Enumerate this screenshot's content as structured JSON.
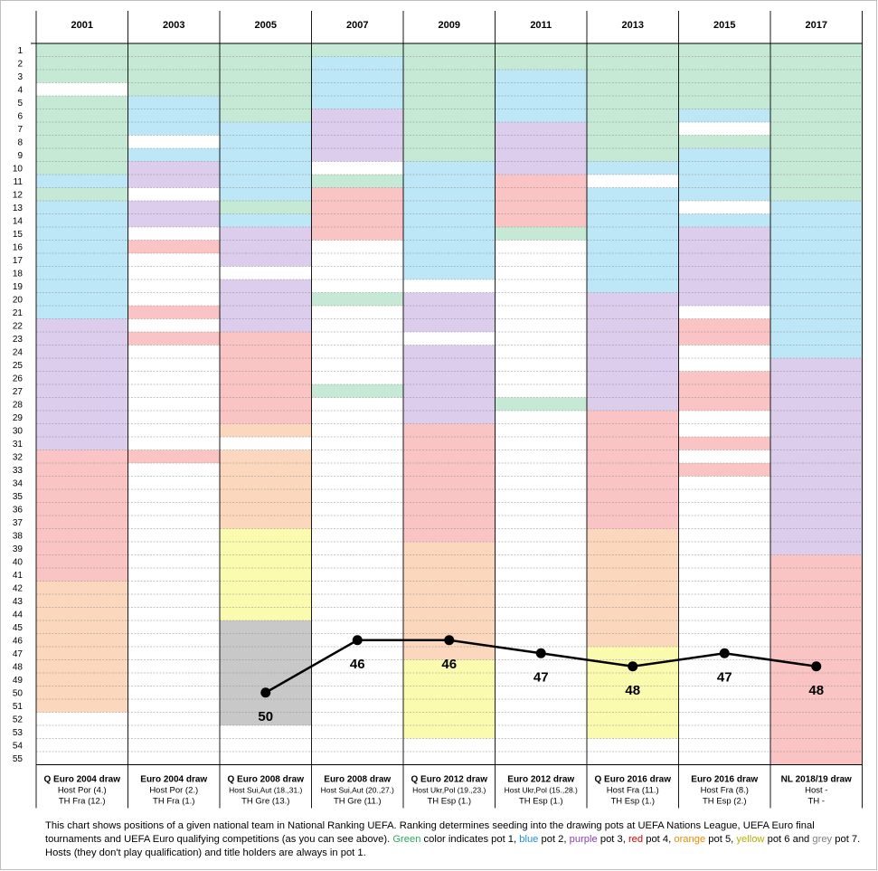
{
  "chart_data": {
    "type": "line",
    "title": "",
    "xlabel": "",
    "ylabel": "",
    "years": [
      "2001",
      "2003",
      "2005",
      "2007",
      "2009",
      "2011",
      "2013",
      "2015",
      "2017"
    ],
    "rows": 55,
    "ylim": [
      1,
      55
    ],
    "pot_colors": {
      "pot1": "#c6e9d5",
      "pot2": "#bde6f7",
      "pot3": "#dccdec",
      "pot4": "#fbc4c4",
      "pot5": "#fbd7bd",
      "pot6": "#fbfbb0",
      "pot7": "#c8c8c8",
      "none": "#ffffff"
    },
    "pot_bands": [
      [
        [
          1,
          3,
          "pot1"
        ],
        [
          4,
          4,
          "none"
        ],
        [
          5,
          10,
          "pot1"
        ],
        [
          11,
          11,
          "pot2"
        ],
        [
          12,
          12,
          "pot1"
        ],
        [
          13,
          21,
          "pot2"
        ],
        [
          22,
          31,
          "pot3"
        ],
        [
          32,
          41,
          "pot4"
        ],
        [
          42,
          51,
          "pot5"
        ]
      ],
      [
        [
          1,
          4,
          "pot1"
        ],
        [
          5,
          7,
          "pot2"
        ],
        [
          8,
          8,
          "none"
        ],
        [
          9,
          9,
          "pot2"
        ],
        [
          10,
          11,
          "pot3"
        ],
        [
          12,
          12,
          "none"
        ],
        [
          13,
          14,
          "pot3"
        ],
        [
          15,
          15,
          "none"
        ],
        [
          16,
          16,
          "pot4"
        ],
        [
          21,
          21,
          "pot4"
        ],
        [
          23,
          23,
          "pot4"
        ],
        [
          32,
          32,
          "pot4"
        ]
      ],
      [
        [
          1,
          6,
          "pot1"
        ],
        [
          7,
          12,
          "pot2"
        ],
        [
          13,
          13,
          "pot1"
        ],
        [
          14,
          14,
          "pot2"
        ],
        [
          15,
          17,
          "pot3"
        ],
        [
          19,
          22,
          "pot3"
        ],
        [
          23,
          29,
          "pot4"
        ],
        [
          30,
          30,
          "pot5"
        ],
        [
          32,
          37,
          "pot5"
        ],
        [
          38,
          44,
          "pot6"
        ],
        [
          45,
          52,
          "pot7"
        ]
      ],
      [
        [
          1,
          1,
          "pot1"
        ],
        [
          2,
          5,
          "pot2"
        ],
        [
          6,
          9,
          "pot3"
        ],
        [
          11,
          11,
          "pot1"
        ],
        [
          12,
          15,
          "pot4"
        ],
        [
          20,
          20,
          "pot1"
        ],
        [
          27,
          27,
          "pot1"
        ]
      ],
      [
        [
          1,
          9,
          "pot1"
        ],
        [
          10,
          18,
          "pot2"
        ],
        [
          20,
          22,
          "pot3"
        ],
        [
          24,
          29,
          "pot3"
        ],
        [
          30,
          38,
          "pot4"
        ],
        [
          39,
          47,
          "pot5"
        ],
        [
          48,
          53,
          "pot6"
        ]
      ],
      [
        [
          1,
          2,
          "pot1"
        ],
        [
          3,
          6,
          "pot2"
        ],
        [
          7,
          10,
          "pot3"
        ],
        [
          11,
          14,
          "pot4"
        ],
        [
          15,
          15,
          "pot1"
        ],
        [
          28,
          28,
          "pot1"
        ]
      ],
      [
        [
          1,
          9,
          "pot1"
        ],
        [
          10,
          10,
          "pot2"
        ],
        [
          12,
          19,
          "pot2"
        ],
        [
          20,
          28,
          "pot3"
        ],
        [
          29,
          37,
          "pot4"
        ],
        [
          38,
          46,
          "pot5"
        ],
        [
          47,
          53,
          "pot6"
        ]
      ],
      [
        [
          1,
          5,
          "pot1"
        ],
        [
          6,
          6,
          "pot2"
        ],
        [
          8,
          8,
          "pot1"
        ],
        [
          9,
          12,
          "pot2"
        ],
        [
          14,
          14,
          "pot2"
        ],
        [
          15,
          20,
          "pot3"
        ],
        [
          22,
          23,
          "pot4"
        ],
        [
          26,
          28,
          "pot4"
        ],
        [
          31,
          31,
          "pot4"
        ],
        [
          33,
          33,
          "pot4"
        ]
      ],
      [
        [
          1,
          12,
          "pot1"
        ],
        [
          13,
          24,
          "pot2"
        ],
        [
          25,
          39,
          "pot3"
        ],
        [
          40,
          55,
          "pot4"
        ]
      ]
    ],
    "series": [
      {
        "x": [
          "2005",
          "2007",
          "2009",
          "2011",
          "2013",
          "2015",
          "2017"
        ],
        "values": [
          50,
          46,
          46,
          47,
          48,
          47,
          48
        ]
      }
    ],
    "events": [
      {
        "name": "Q Euro 2004 draw",
        "host": "Host Por (4.)",
        "th": "TH Fra (12.)"
      },
      {
        "name": "Euro 2004 draw",
        "host": "Host Por (2.)",
        "th": "TH Fra (1.)"
      },
      {
        "name": "Q Euro 2008 draw",
        "host": "Host Sui,Aut (18.,31.)",
        "th": "TH Gre (13.)"
      },
      {
        "name": "Euro 2008 draw",
        "host": "Host Sui,Aut (20.,27.)",
        "th": "TH Gre (11.)"
      },
      {
        "name": "Q Euro 2012 draw",
        "host": "Host Ukr,Pol (19.,23.)",
        "th": "TH Esp (1.)"
      },
      {
        "name": "Euro 2012 draw",
        "host": "Host Ukr,Pol (15.,28.)",
        "th": "TH Esp (1.)"
      },
      {
        "name": "Q Euro 2016 draw",
        "host": "Host Fra (11.)",
        "th": "TH Esp (1.)"
      },
      {
        "name": "Euro 2016 draw",
        "host": "Host Fra (8.)",
        "th": "TH Esp (2.)"
      },
      {
        "name": "NL 2018/19 draw",
        "host": "Host -",
        "th": "TH -"
      }
    ]
  },
  "note": {
    "p1": "This chart shows positions of a given national team in National Ranking UEFA. Ranking determines seeding into the drawing pots at UEFA Nations League, UEFA Euro final tournaments and UEFA Euro qualifying competitions (as you can see above). ",
    "green": "Green",
    "p2": " color indicates pot 1, ",
    "blue": "blue",
    "p3": " pot 2, ",
    "purple": "purple",
    "p4": " pot 3, ",
    "red": "red",
    "p5": " pot 4, ",
    "orange": "orange",
    "p6": " pot 5, ",
    "yellow": "yellow",
    "p7": " pot 6 and ",
    "grey": "grey",
    "p8": " pot 7. Hosts (they don't play qualification) and title holders are always in pot 1."
  }
}
